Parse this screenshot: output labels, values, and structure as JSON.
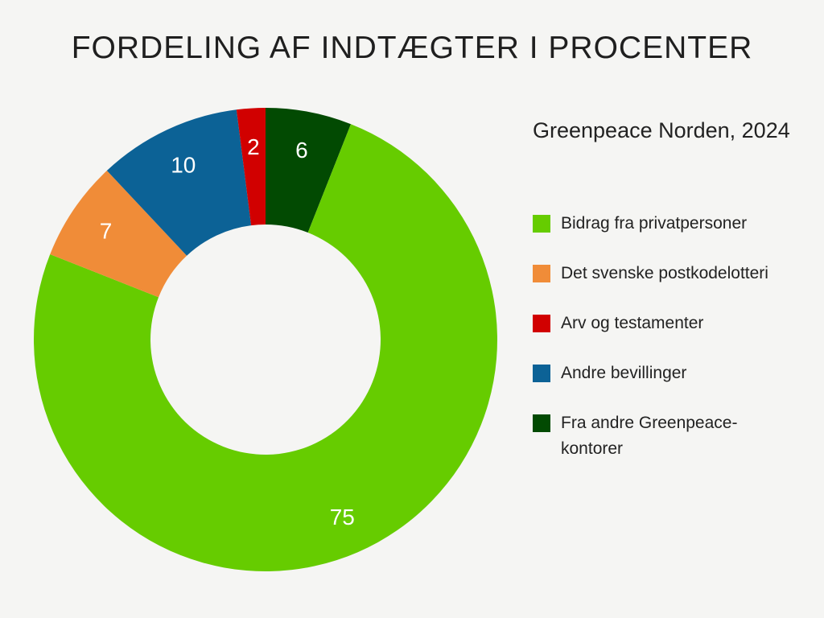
{
  "title": "FORDELING AF INDTÆGTER I PROCENTER",
  "legend_title": "Greenpeace Norden, 2024",
  "chart_data": {
    "type": "pie",
    "donut": true,
    "title": "FORDELING AF INDTÆGTER I PROCENTER",
    "subtitle": "Greenpeace Norden, 2024",
    "legend_position": "right",
    "start_angle_deg": 0,
    "direction": "clockwise",
    "slices": [
      {
        "label": "Fra andre Greenpeace-kontorer",
        "value": 6,
        "color": "#024a02"
      },
      {
        "label": "Bidrag fra privatpersoner",
        "value": 75,
        "color": "#66cc00"
      },
      {
        "label": "Det svenske postkodelotteri",
        "value": 7,
        "color": "#f08c38"
      },
      {
        "label": "Andre bevillinger",
        "value": 10,
        "color": "#0c6296"
      },
      {
        "label": "Arv og testamenter",
        "value": 2,
        "color": "#d10000"
      }
    ]
  },
  "legend": [
    {
      "label": "Bidrag fra privatpersoner",
      "color": "#66cc00"
    },
    {
      "label": "Det svenske postkodelotteri",
      "color": "#f08c38"
    },
    {
      "label": "Arv og testamenter",
      "color": "#d10000"
    },
    {
      "label": "Andre bevillinger",
      "color": "#0c6296"
    },
    {
      "label": "Fra andre Greenpeace-kontorer",
      "color": "#024a02"
    }
  ]
}
